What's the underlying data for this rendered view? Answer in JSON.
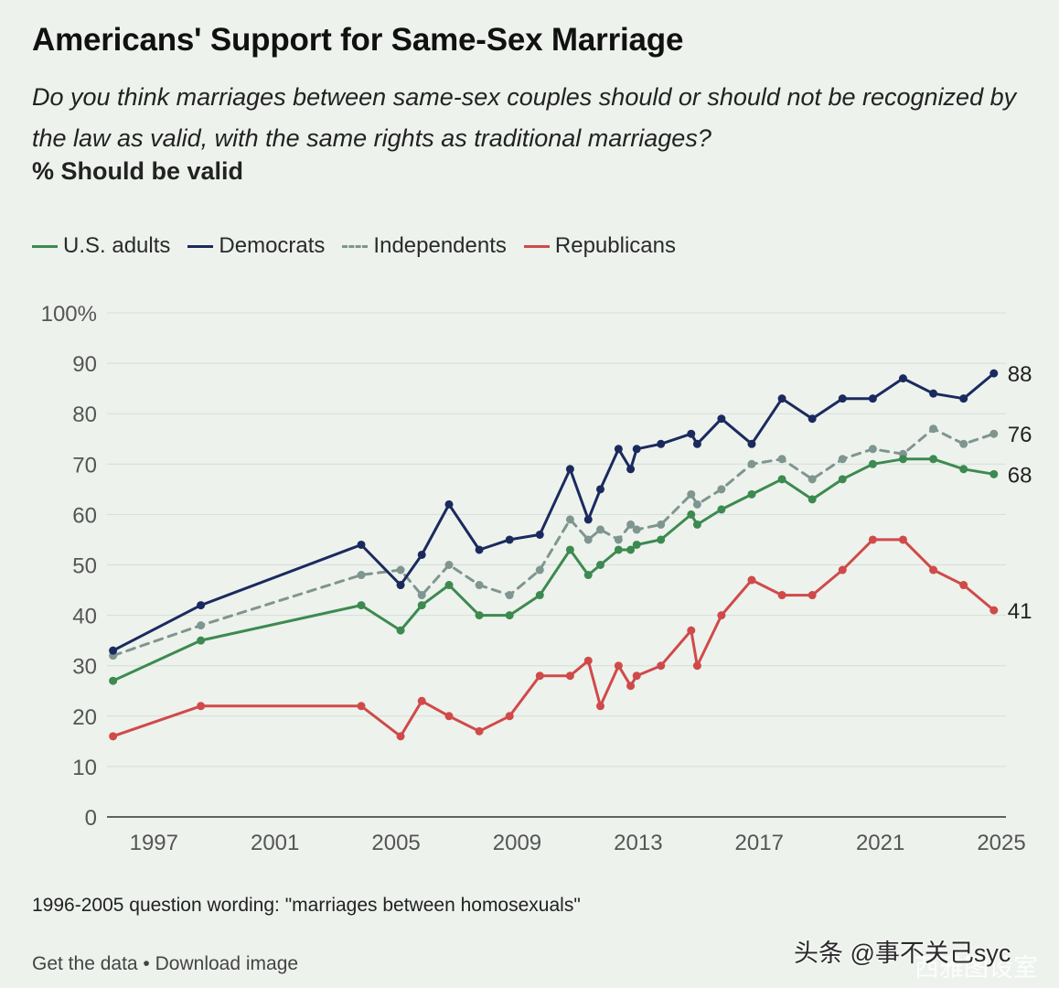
{
  "header": {
    "title": "Americans' Support for Same-Sex Marriage",
    "subtitle": "Do you think marriages between same-sex couples should or should not be recognized by the law as valid, with the same rights as traditional marriages?",
    "measure": "% Should be valid"
  },
  "footer": {
    "note": "1996-2005 question wording: \"marriages between homosexuals\"",
    "get_data": "Get the data",
    "separator": " • ",
    "download": "Download image"
  },
  "watermark": {
    "text": "头条 @事不关己syc",
    "ghost": "西雅图设室"
  },
  "chart_data": {
    "type": "line",
    "title": "Americans' Support for Same-Sex Marriage",
    "ylabel": "% Should be valid",
    "xlabel": "",
    "xlim": [
      1996,
      2025.7
    ],
    "ylim": [
      0,
      100
    ],
    "x_ticks": [
      1997,
      2001,
      2005,
      2009,
      2013,
      2017,
      2021,
      2025
    ],
    "y_ticks": [
      {
        "value": 0,
        "label": "0"
      },
      {
        "value": 10,
        "label": "10"
      },
      {
        "value": 20,
        "label": "20"
      },
      {
        "value": 30,
        "label": "30"
      },
      {
        "value": 40,
        "label": "40"
      },
      {
        "value": 50,
        "label": "50"
      },
      {
        "value": 60,
        "label": "60"
      },
      {
        "value": 70,
        "label": "70"
      },
      {
        "value": 80,
        "label": "80"
      },
      {
        "value": 90,
        "label": "90"
      },
      {
        "value": 100,
        "label": "100%"
      }
    ],
    "legend_position": "top-left",
    "x": [
      1996.2,
      1999.1,
      2004.4,
      2005.7,
      2006.4,
      2007.3,
      2008.3,
      2009.3,
      2010.3,
      2011.3,
      2011.9,
      2012.3,
      2012.9,
      2013.3,
      2013.5,
      2014.3,
      2015.3,
      2015.5,
      2016.3,
      2017.3,
      2018.3,
      2019.3,
      2020.3,
      2021.3,
      2022.3,
      2023.3,
      2024.3,
      2025.3
    ],
    "series": [
      {
        "name": "U.S. adults",
        "color": "#3d8a50",
        "dash": "solid",
        "end_label": "68",
        "values": [
          27,
          35,
          42,
          37,
          42,
          46,
          40,
          40,
          44,
          53,
          48,
          50,
          53,
          53,
          54,
          55,
          60,
          58,
          61,
          64,
          67,
          63,
          67,
          70,
          71,
          71,
          69,
          68
        ]
      },
      {
        "name": "Democrats",
        "color": "#1b2a5e",
        "dash": "solid",
        "end_label": "88",
        "values": [
          33,
          42,
          54,
          46,
          52,
          62,
          53,
          55,
          56,
          69,
          59,
          65,
          73,
          69,
          73,
          74,
          76,
          74,
          79,
          74,
          83,
          79,
          83,
          83,
          87,
          84,
          83,
          88
        ]
      },
      {
        "name": "Independents",
        "color": "#7f9590",
        "dash": "dashed",
        "end_label": "76",
        "values": [
          32,
          38,
          48,
          49,
          44,
          50,
          46,
          44,
          49,
          59,
          55,
          57,
          55,
          58,
          57,
          58,
          64,
          62,
          65,
          70,
          71,
          67,
          71,
          73,
          72,
          77,
          74,
          76
        ]
      },
      {
        "name": "Republicans",
        "color": "#d04a4a",
        "dash": "solid",
        "end_label": "41",
        "values": [
          16,
          22,
          22,
          16,
          23,
          20,
          17,
          20,
          28,
          28,
          31,
          22,
          30,
          26,
          28,
          30,
          37,
          30,
          40,
          47,
          44,
          44,
          49,
          55,
          55,
          49,
          46,
          41
        ]
      }
    ]
  }
}
